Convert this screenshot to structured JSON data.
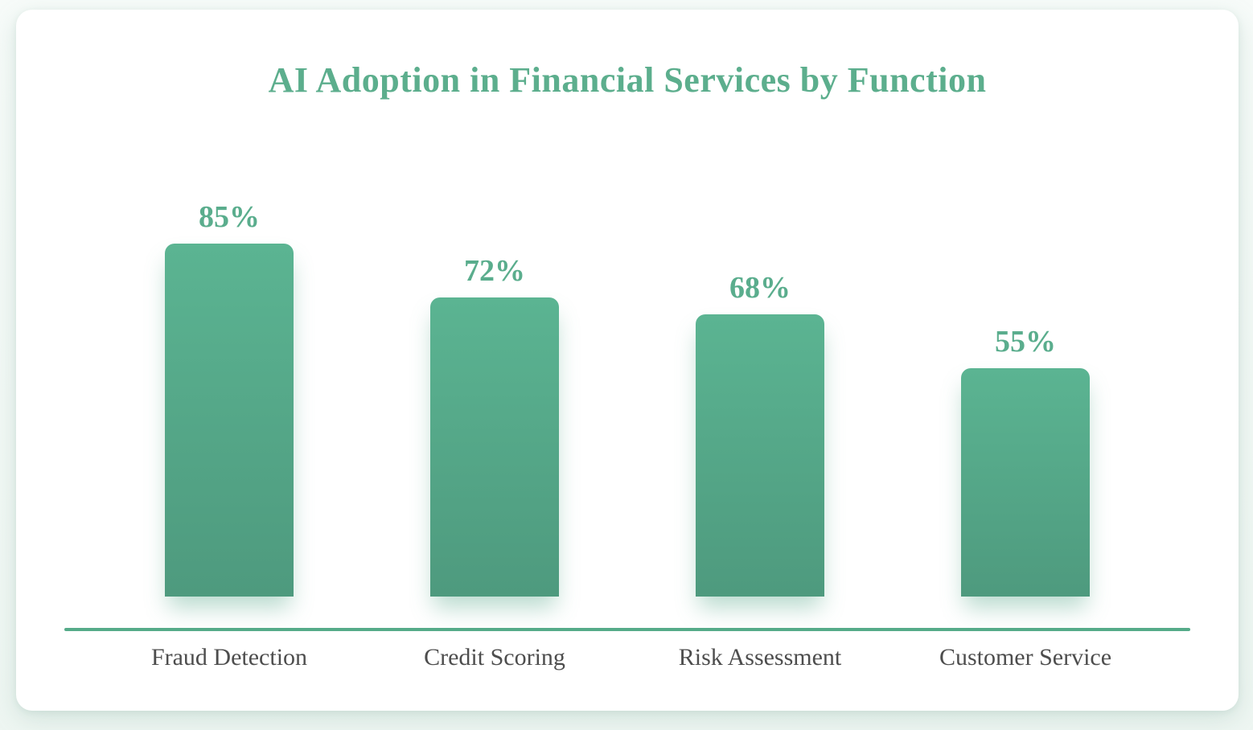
{
  "page": {
    "background_color": "#eef6f2",
    "card_background": "#ffffff"
  },
  "chart_data": {
    "type": "bar",
    "title": "AI Adoption in Financial Services by Function",
    "categories": [
      "Fraud Detection",
      "Credit Scoring",
      "Risk Assessment",
      "Customer Service"
    ],
    "values": [
      85,
      72,
      68,
      55
    ],
    "value_labels": [
      "85%",
      "72%",
      "68%",
      "55%"
    ],
    "xlabel": "",
    "ylabel": "",
    "ylim": [
      0,
      100
    ],
    "grid": false,
    "legend": false,
    "colors": {
      "title": "#5cae8d",
      "value_label": "#5aad8d",
      "bar_gradient_top": "#5bb492",
      "bar_gradient_bottom": "#4e9a7e",
      "axis_line": "#55ab89",
      "category_label": "#4d4d4d"
    }
  }
}
